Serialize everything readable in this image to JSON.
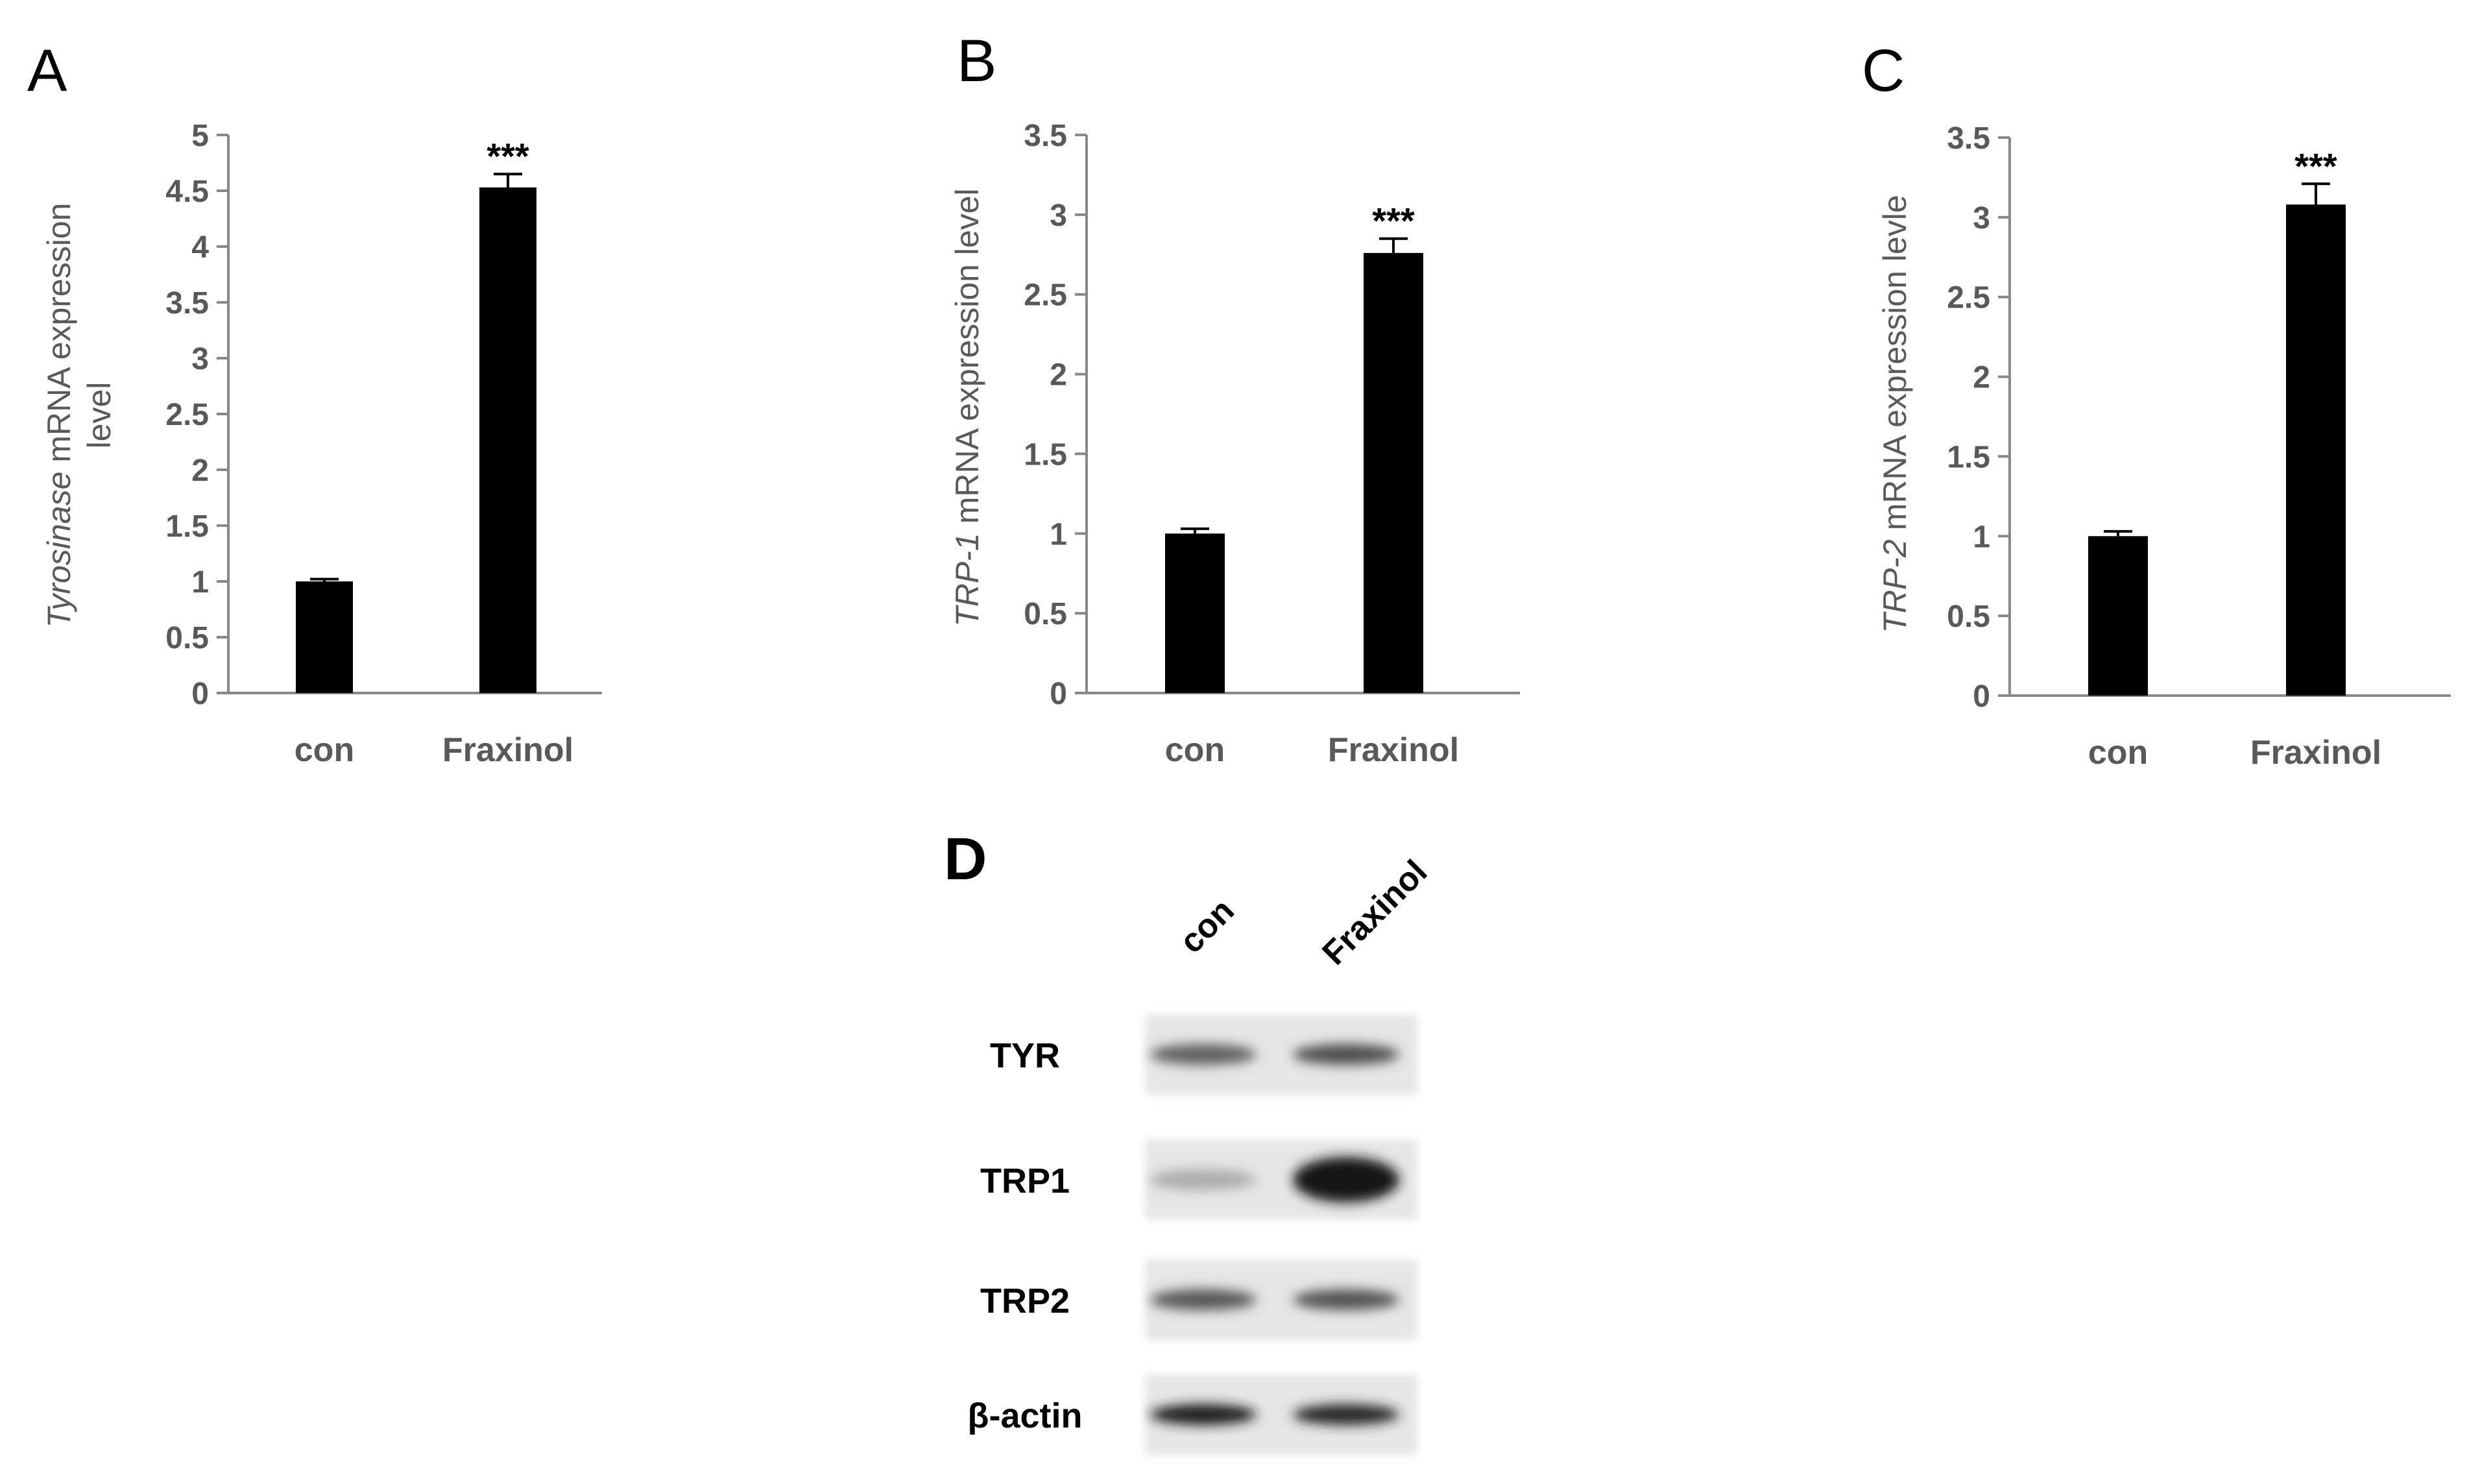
{
  "chart_data": [
    {
      "panel": "A",
      "type": "bar",
      "categories": [
        "con",
        "Fraxinol"
      ],
      "values": [
        1.0,
        4.53
      ],
      "errors": [
        0.02,
        0.12
      ],
      "significance": [
        "",
        "***"
      ],
      "ylabel_italic": "Tyrosinase",
      "ylabel_rest": " mRNA expression",
      "ylabel_line2": "level",
      "ylim": [
        0,
        5
      ],
      "yticks": [
        "0",
        "0.5",
        "1",
        "1.5",
        "2",
        "2.5",
        "3",
        "3.5",
        "4",
        "4.5",
        "5"
      ],
      "ytick_values": [
        0,
        0.5,
        1,
        1.5,
        2,
        2.5,
        3,
        3.5,
        4,
        4.5,
        5
      ],
      "bar_color": "#000000",
      "grid": false
    },
    {
      "panel": "B",
      "type": "bar",
      "categories": [
        "con",
        "Fraxinol"
      ],
      "values": [
        1.0,
        2.76
      ],
      "errors": [
        0.03,
        0.09
      ],
      "significance": [
        "",
        "***"
      ],
      "ylabel_italic": "TRP-1",
      "ylabel_rest": " mRNA expression level",
      "ylabel_line2": "",
      "ylim": [
        0,
        3.5
      ],
      "yticks": [
        "0",
        "0.5",
        "1",
        "1.5",
        "2",
        "2.5",
        "3",
        "3.5"
      ],
      "ytick_values": [
        0,
        0.5,
        1,
        1.5,
        2,
        2.5,
        3,
        3.5
      ],
      "bar_color": "#000000",
      "grid": false
    },
    {
      "panel": "C",
      "type": "bar",
      "categories": [
        "con",
        "Fraxinol"
      ],
      "values": [
        1.0,
        3.08
      ],
      "errors": [
        0.03,
        0.13
      ],
      "significance": [
        "",
        "***"
      ],
      "ylabel_italic": "TRP-2",
      "ylabel_rest": " mRNA expression levle",
      "ylabel_line2": "",
      "ylim": [
        0,
        3.5
      ],
      "yticks": [
        "0",
        "0.5",
        "1",
        "1.5",
        "2",
        "2.5",
        "3",
        "3.5"
      ],
      "ytick_values": [
        0,
        0.5,
        1,
        1.5,
        2,
        2.5,
        3,
        3.5
      ],
      "bar_color": "#000000",
      "grid": false
    }
  ],
  "blot": {
    "panel": "D",
    "lanes": [
      "con",
      "Fraxinol"
    ],
    "rows": [
      {
        "label": "TYR",
        "intensities": [
          0.55,
          0.65
        ]
      },
      {
        "label": "TRP1",
        "intensities": [
          0.15,
          0.95
        ]
      },
      {
        "label": "TRP2",
        "intensities": [
          0.6,
          0.62
        ]
      },
      {
        "label": "β-actin",
        "intensities": [
          0.9,
          0.85
        ]
      }
    ]
  }
}
